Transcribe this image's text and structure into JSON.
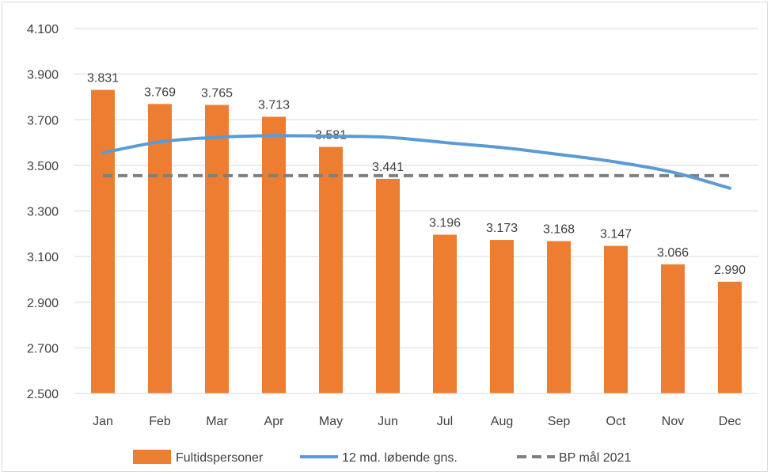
{
  "chart_data": {
    "type": "bar",
    "categories": [
      "Jan",
      "Feb",
      "Mar",
      "Apr",
      "May",
      "Jun",
      "Jul",
      "Aug",
      "Sep",
      "Oct",
      "Nov",
      "Dec"
    ],
    "series": [
      {
        "name": "Fultidspersoner",
        "kind": "bar",
        "color": "#ED7D31",
        "values": [
          3831,
          3769,
          3765,
          3713,
          3581,
          3441,
          3196,
          3173,
          3168,
          3147,
          3066,
          2990
        ],
        "labels": [
          "3.831",
          "3.769",
          "3.765",
          "3.713",
          "3.581",
          "3.441",
          "3.196",
          "3.173",
          "3.168",
          "3.147",
          "3.066",
          "2.990"
        ]
      },
      {
        "name": "12 md. løbende gns.",
        "kind": "line",
        "color": "#5B9BD5",
        "values": [
          3555,
          3603,
          3623,
          3630,
          3628,
          3623,
          3600,
          3578,
          3548,
          3515,
          3470,
          3400
        ]
      },
      {
        "name": "BP mål 2021",
        "kind": "dashed-line",
        "color": "#7F7F7F",
        "values": [
          3455,
          3455,
          3455,
          3455,
          3455,
          3455,
          3455,
          3455,
          3455,
          3455,
          3455,
          3455
        ]
      }
    ],
    "ylim": [
      2500,
      4100
    ],
    "yticks": [
      2500,
      2700,
      2900,
      3100,
      3300,
      3500,
      3700,
      3900,
      4100
    ],
    "ytick_labels": [
      "2.500",
      "2.700",
      "2.900",
      "3.100",
      "3.300",
      "3.500",
      "3.700",
      "3.900",
      "4.100"
    ],
    "grid": true,
    "legend_position": "bottom"
  }
}
